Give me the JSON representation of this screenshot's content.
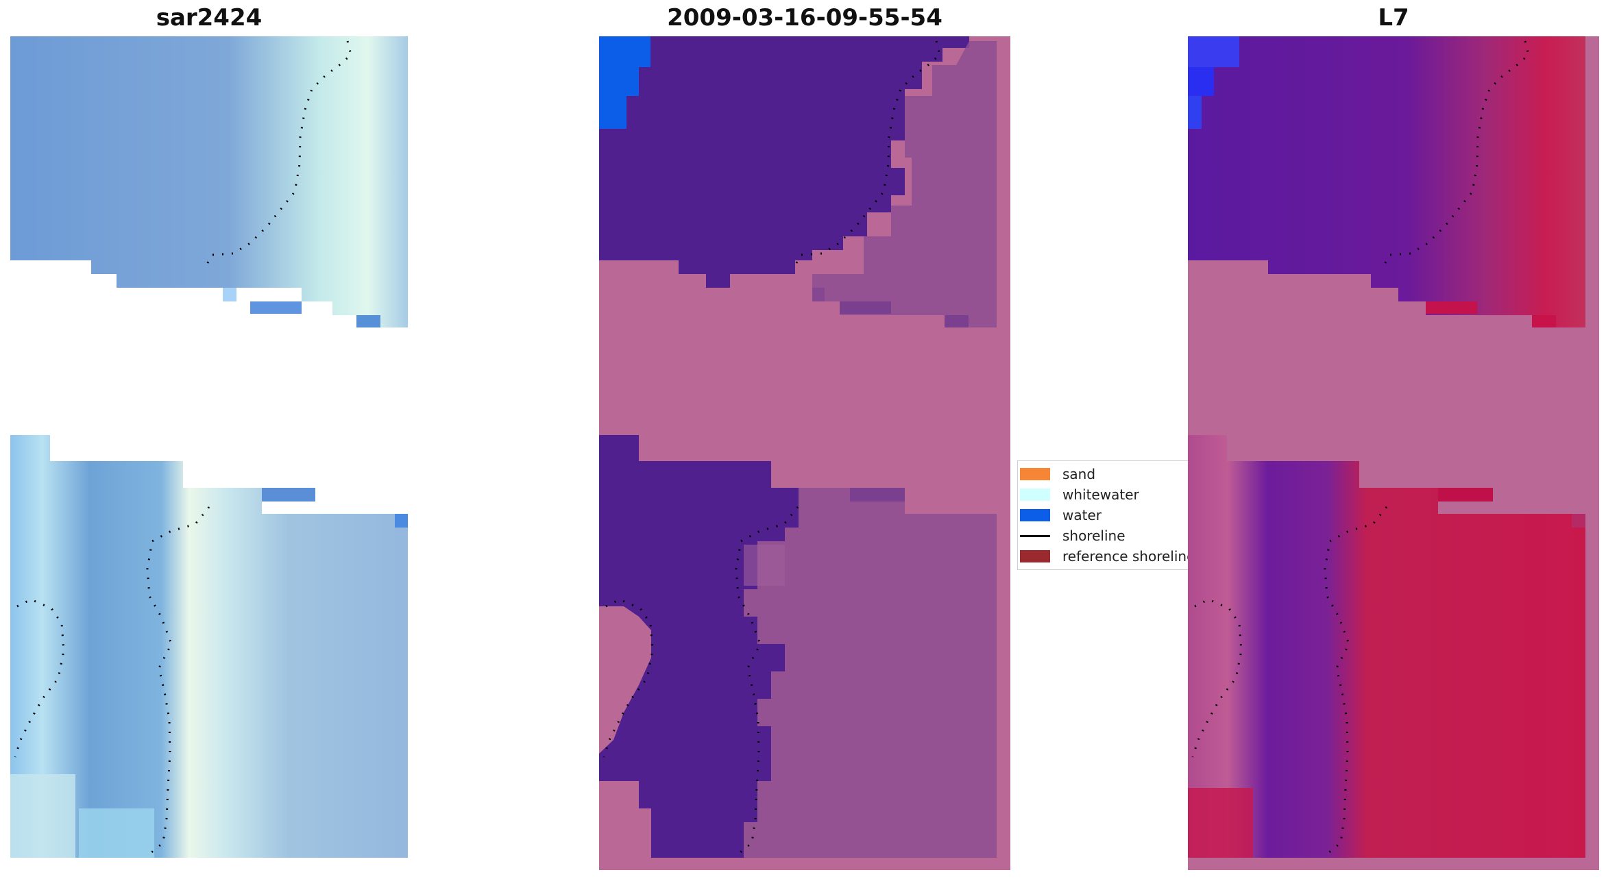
{
  "panels": [
    {
      "title": "sar2424"
    },
    {
      "title": "2009-03-16-09-55-54"
    },
    {
      "title": "L7"
    }
  ],
  "legend": {
    "items": [
      {
        "label": "sand",
        "color": "#f68636"
      },
      {
        "label": "whitewater",
        "color": "#cffffe"
      },
      {
        "label": "water",
        "color": "#0c5ee9"
      },
      {
        "label": "shoreline",
        "color": "#000000",
        "kind": "line"
      },
      {
        "label": "reference shoreline",
        "color": "#9a2a2e"
      }
    ]
  },
  "colors": {
    "sar_blue": "#6d9bd6",
    "sar_light": "#a7d0e6",
    "class_purple": "#50208f",
    "class_pink": "#ba6896",
    "class_mauve": "#8e4f93",
    "l7_purple": "#6a1a9a",
    "l7_red": "#c51f50",
    "blue_water": "#1040f0"
  }
}
